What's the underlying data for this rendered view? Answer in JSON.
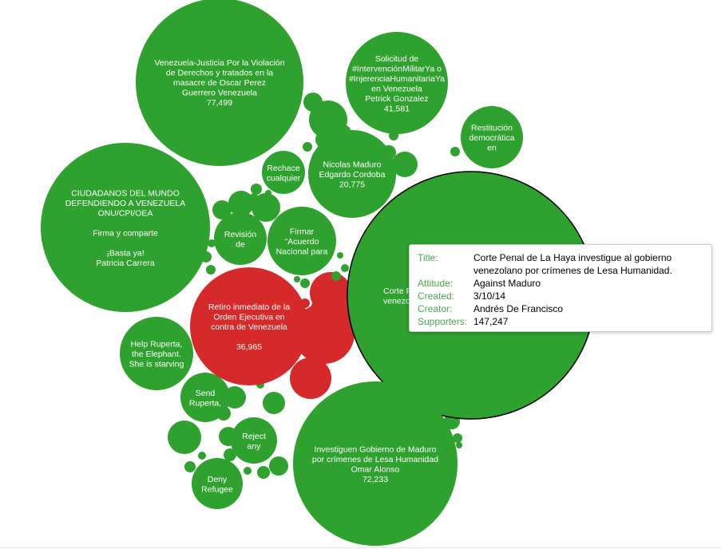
{
  "colors": {
    "support": "#2ea12e",
    "against": "#d62a2a",
    "outline": "#000000"
  },
  "petitions": [
    {
      "id": "oscar",
      "color": "support",
      "lines": [
        "Venezuela-Justicia Por la Violación",
        "de Derechos y tratados en la",
        "masacre de Oscar Perez",
        "Guerrero Venezuela",
        "77,499"
      ]
    },
    {
      "id": "ciudadanos",
      "color": "support",
      "lines": [
        "CIUDADANOS DEL MUNDO",
        "DEFENDIENDO A VENEZUELA",
        "ONU/CPI/OEA",
        "",
        "Firma y comparte",
        "",
        "¡Basta ya!",
        "Patricia Carrera"
      ]
    },
    {
      "id": "intervencion",
      "color": "support",
      "lines": [
        "Solicitud de",
        "#IntervenciónMilitarYa o",
        "#InjerenciaHumanitariaYa",
        "en Venezuela",
        "Petrick Gonzalez",
        "41,581"
      ]
    },
    {
      "id": "restitucion",
      "color": "support",
      "lines": [
        "Restitución",
        "democrática",
        "en"
      ]
    },
    {
      "id": "nicolas",
      "color": "support",
      "lines": [
        "Nicolas Maduro",
        "Edgardo Cordoba",
        "20,775"
      ]
    },
    {
      "id": "rechace",
      "color": "support",
      "lines": [
        "Rechace",
        "cualquier"
      ]
    },
    {
      "id": "revision",
      "color": "support",
      "lines": [
        "Revisión",
        "de"
      ]
    },
    {
      "id": "firmar",
      "color": "support",
      "lines": [
        "Firmar",
        "\"Acuerdo",
        "Nacional para"
      ]
    },
    {
      "id": "corte",
      "color": "support",
      "lines": [
        "Corte P",
        "venezo"
      ]
    },
    {
      "id": "retiro",
      "color": "against",
      "lines": [
        "Retiro inmediato de la",
        "Orden Ejecutiva en",
        "contra de Venezuela",
        "",
        "36,965"
      ]
    },
    {
      "id": "ruperta",
      "color": "support",
      "lines": [
        "Help Ruperta,",
        "the Elephant.",
        "She is starving"
      ]
    },
    {
      "id": "send",
      "color": "support",
      "lines": [
        "Send",
        "Ruperta,"
      ]
    },
    {
      "id": "reject",
      "color": "support",
      "lines": [
        "Reject",
        "any"
      ]
    },
    {
      "id": "deny",
      "color": "support",
      "lines": [
        "Deny",
        "Refugee"
      ]
    },
    {
      "id": "investiguen",
      "color": "support",
      "lines": [
        "Investiguen Gobierno de Maduro",
        "por crímenes de Lesa Humanidad",
        "Omar Alonso",
        "72,233"
      ]
    }
  ],
  "tooltip": {
    "title_key": "Title:",
    "title": "Corte Penal de La Haya investigue al gobierno venezolano por crímenes de Lesa Humanidad.",
    "attitude_key": "Attitude:",
    "attitude": "Against Maduro",
    "created_key": "Created:",
    "created": "3/10/14",
    "creator_key": "Creator:",
    "creator": "Andrés De Francisco",
    "supporters_key": "Supporters:",
    "supporters": "147,247"
  }
}
